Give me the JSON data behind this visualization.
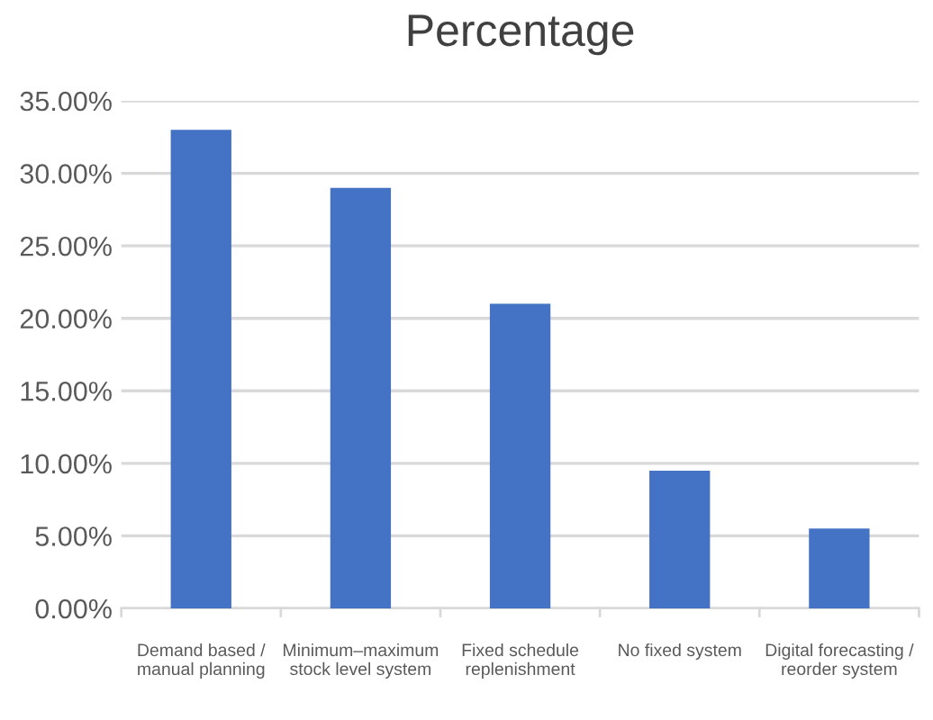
{
  "chart_data": {
    "type": "bar",
    "title": "Percentage",
    "categories": [
      "Demand based /\nmanual planning",
      "Minimum–maximum\nstock level system",
      "Fixed schedule\nreplenishment",
      "No fixed system",
      "Digital forecasting /\nreorder system"
    ],
    "values": [
      33,
      29,
      21,
      9.5,
      5.5
    ],
    "color": "#4472c4",
    "ylim": [
      0,
      35
    ],
    "yticks": [
      {
        "value": 0,
        "label": "0.00%"
      },
      {
        "value": 5,
        "label": "5.00%"
      },
      {
        "value": 10,
        "label": "10.00%"
      },
      {
        "value": 15,
        "label": "15.00%"
      },
      {
        "value": 20,
        "label": "20.00%"
      },
      {
        "value": 25,
        "label": "25.00%"
      },
      {
        "value": 30,
        "label": "30.00%"
      },
      {
        "value": 35,
        "label": "35.00%"
      }
    ],
    "grid": "y",
    "legend": false
  }
}
